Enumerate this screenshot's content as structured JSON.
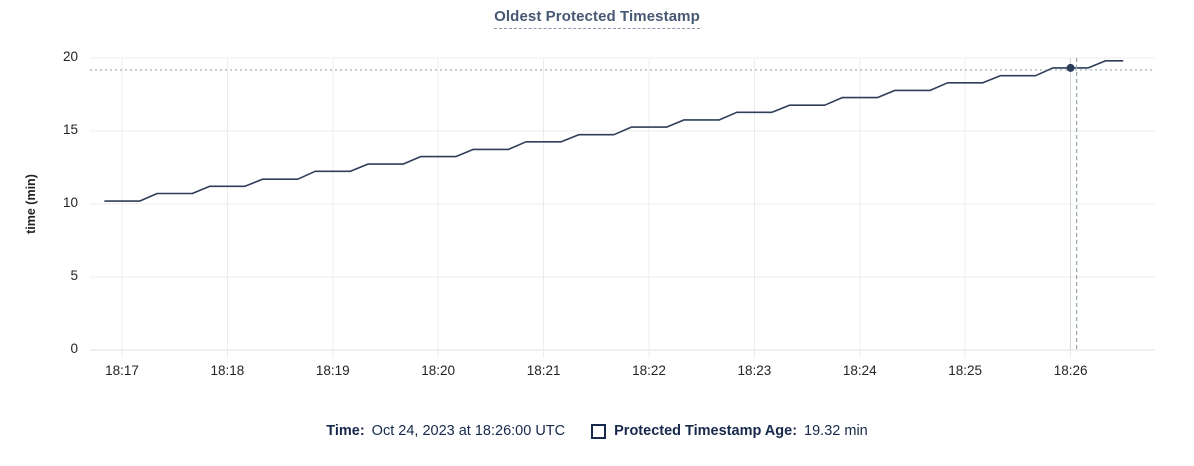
{
  "title": "Oldest Protected Timestamp",
  "y_axis": {
    "label": "time (min)",
    "ticks": [
      0,
      5,
      10,
      15,
      20
    ]
  },
  "x_axis": {
    "ticks": [
      "18:17",
      "18:18",
      "18:19",
      "18:20",
      "18:21",
      "18:22",
      "18:23",
      "18:24",
      "18:25",
      "18:26"
    ]
  },
  "legend": {
    "time_label": "Time:",
    "time_value": "Oct 24, 2023 at 18:26:00 UTC",
    "series_label": "Protected Timestamp Age:",
    "series_value": "19.32 min"
  },
  "colors": {
    "line": "#2f3e58",
    "dot": "#2f3e58",
    "title": "#475872",
    "title_underline": "#8b99ad",
    "legend_text": "#16294c",
    "axis_text": "#242424",
    "grid": "#ececec",
    "zero_line": "#dfdfdf",
    "hover_line": "#d3d6da",
    "crosshair": "#95a9b5"
  },
  "chart_data": {
    "type": "line",
    "title": "Oldest Protected Timestamp",
    "xlabel": "",
    "ylabel": "time (min)",
    "ylim": [
      0,
      20
    ],
    "y_ticks": [
      0,
      5,
      10,
      15,
      20
    ],
    "x_ticks": [
      "18:17",
      "18:18",
      "18:19",
      "18:20",
      "18:21",
      "18:22",
      "18:23",
      "18:24",
      "18:25",
      "18:26"
    ],
    "grid": true,
    "legend_position": "bottom",
    "series": [
      {
        "name": "Protected Timestamp Age",
        "unit": "min",
        "start_time": "18:16:50",
        "interval_seconds": 10,
        "values": [
          10.2,
          10.2,
          10.2,
          10.72,
          10.72,
          10.72,
          11.21,
          11.21,
          11.21,
          11.7,
          11.7,
          11.7,
          12.24,
          12.24,
          12.24,
          12.73,
          12.73,
          12.73,
          13.25,
          13.25,
          13.25,
          13.74,
          13.74,
          13.74,
          14.26,
          14.26,
          14.26,
          14.75,
          14.75,
          14.75,
          15.27,
          15.27,
          15.27,
          15.76,
          15.76,
          15.76,
          16.28,
          16.28,
          16.28,
          16.77,
          16.77,
          16.77,
          17.29,
          17.29,
          17.29,
          17.78,
          17.78,
          17.78,
          18.3,
          18.3,
          18.3,
          18.79,
          18.79,
          18.79,
          19.32,
          19.32,
          19.32,
          19.81,
          19.81
        ]
      }
    ],
    "hover_point": {
      "time": "18:26:00",
      "value": 19.32
    }
  }
}
